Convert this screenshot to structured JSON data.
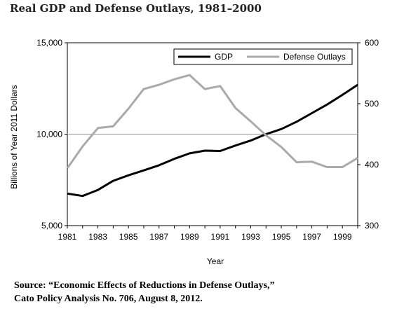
{
  "chart_data": {
    "type": "line",
    "title": "Real GDP and Defense Outlays, 1981–2000",
    "xlabel": "Year",
    "ylabel_left": "Billions of Year 2011 Dollars",
    "ylabel_right": "",
    "xlim": [
      1981,
      2000
    ],
    "ylim_left": [
      5000,
      15000
    ],
    "ylim_right": [
      300,
      600
    ],
    "x_ticks": [
      "1981",
      "1983",
      "1985",
      "1987",
      "1989",
      "1991",
      "1993",
      "1995",
      "1997",
      "1999"
    ],
    "y_left_ticks": [
      "5,000",
      "10,000",
      "15,000"
    ],
    "y_right_ticks": [
      "300",
      "400",
      "500",
      "600"
    ],
    "grid": "horizontal at 10,000",
    "legend_position": "top-right",
    "x": [
      1981,
      1982,
      1983,
      1984,
      1985,
      1986,
      1987,
      1988,
      1989,
      1990,
      1991,
      1992,
      1993,
      1994,
      1995,
      1996,
      1997,
      1998,
      1999,
      2000
    ],
    "series": [
      {
        "name": "GDP",
        "axis": "left",
        "color": "#000000",
        "values": [
          6750,
          6620,
          6950,
          7450,
          7750,
          8020,
          8300,
          8650,
          8950,
          9100,
          9080,
          9380,
          9650,
          10000,
          10280,
          10680,
          11150,
          11620,
          12150,
          12700
        ]
      },
      {
        "name": "Defense Outlays",
        "axis": "right",
        "color": "#aaaaaa",
        "values": [
          394,
          430,
          460,
          463,
          492,
          524,
          531,
          540,
          547,
          524,
          529,
          493,
          471,
          448,
          429,
          404,
          405,
          396,
          396,
          411
        ]
      }
    ]
  },
  "source": {
    "line1": "Source: “Economic Effects of Reductions in Defense Outlays,”",
    "line2": "Cato Policy Analysis No. 706, August 8, 2012."
  }
}
